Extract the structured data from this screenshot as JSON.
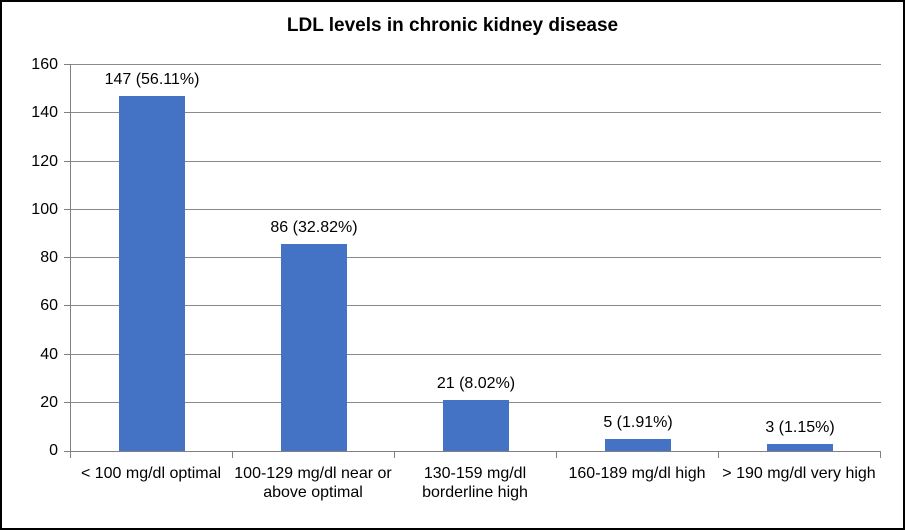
{
  "window": {
    "background": "#ffffff",
    "border_color": "#000000"
  },
  "chart_data": {
    "type": "bar",
    "title": "LDL levels in chronic kidney disease",
    "categories": [
      "< 100 mg/dl optimal",
      "100-129 mg/dl near or above optimal",
      "130-159 mg/dl borderline high",
      "160-189 mg/dl high",
      "> 190 mg/dl very high"
    ],
    "values": [
      147,
      86,
      21,
      5,
      3
    ],
    "data_labels": [
      "147 (56.11%)",
      "86 (32.82%)",
      "21 (8.02%)",
      "5 (1.91%)",
      "3 (1.15%)"
    ],
    "percentages": [
      56.11,
      32.82,
      8.02,
      1.91,
      1.15
    ],
    "xlabel": "",
    "ylabel": "",
    "ylim": [
      0,
      160
    ],
    "yticks": [
      0,
      20,
      40,
      60,
      80,
      100,
      120,
      140,
      160
    ],
    "grid": true,
    "legend": "none",
    "bar_color": "#4472C4",
    "axis_color": "#808080",
    "grid_color": "#8a8a8a",
    "text_color": "#000000"
  }
}
